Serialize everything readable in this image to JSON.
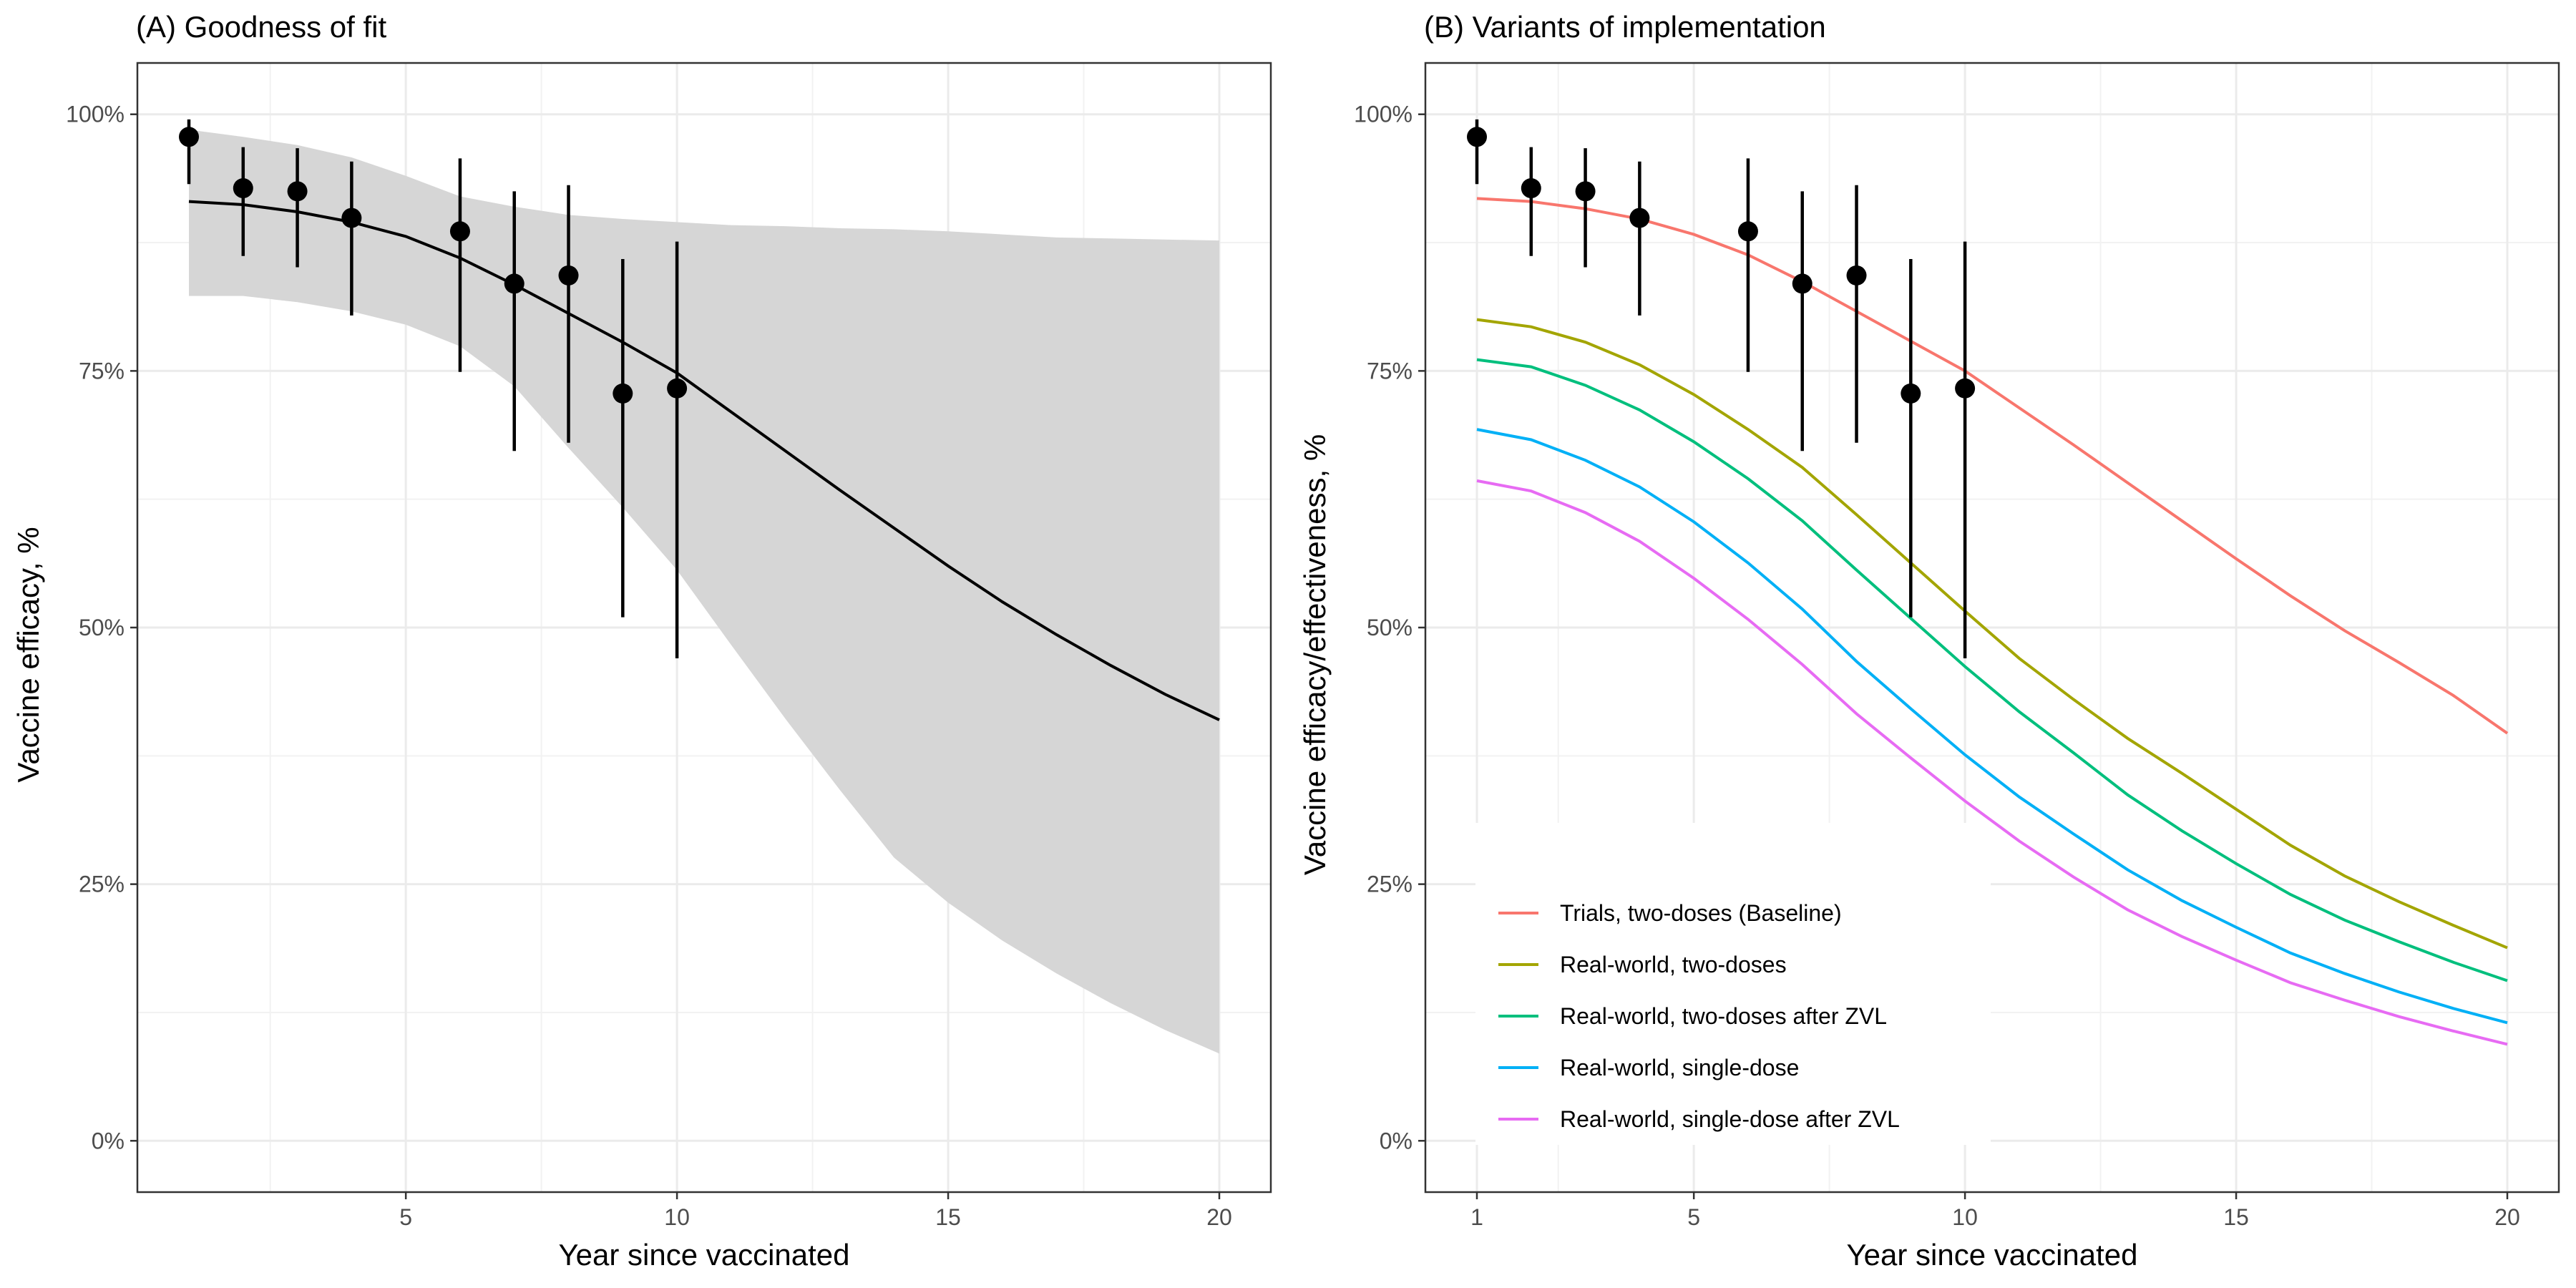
{
  "chart_data": [
    {
      "panel": "A",
      "type": "line",
      "title": "(A) Goodness of fit",
      "xlabel": "Year since vaccinated",
      "ylabel": "Vaccine efficacy, %",
      "xlim": [
        0.05,
        20.95
      ],
      "ylim": [
        -0.05,
        1.05
      ],
      "x_ticks": [
        5,
        10,
        15,
        20
      ],
      "x_tick_labels": [
        "5",
        "10",
        "15",
        "20"
      ],
      "y_ticks": [
        0,
        0.25,
        0.5,
        0.75,
        1.0
      ],
      "y_tick_labels": [
        "0%",
        "25%",
        "50%",
        "75%",
        "100%"
      ],
      "grid": true,
      "fit_line": {
        "x": [
          1,
          2,
          3,
          4,
          5,
          6,
          7,
          8,
          9,
          10,
          11,
          12,
          13,
          14,
          15,
          16,
          17,
          18,
          19,
          20
        ],
        "y": [
          0.915,
          0.912,
          0.905,
          0.895,
          0.881,
          0.86,
          0.834,
          0.806,
          0.778,
          0.748,
          0.71,
          0.672,
          0.634,
          0.597,
          0.56,
          0.525,
          0.493,
          0.463,
          0.435,
          0.41
        ]
      },
      "ribbon": {
        "x": [
          1,
          2,
          3,
          4,
          5,
          6,
          7,
          8,
          9,
          10,
          11,
          12,
          13,
          14,
          15,
          16,
          17,
          18,
          19,
          20
        ],
        "lower": [
          0.823,
          0.823,
          0.817,
          0.808,
          0.795,
          0.774,
          0.735,
          0.675,
          0.617,
          0.556,
          0.483,
          0.411,
          0.342,
          0.276,
          0.232,
          0.195,
          0.163,
          0.134,
          0.108,
          0.085
        ],
        "upper": [
          0.985,
          0.978,
          0.97,
          0.958,
          0.94,
          0.92,
          0.91,
          0.902,
          0.898,
          0.895,
          0.892,
          0.891,
          0.889,
          0.888,
          0.886,
          0.883,
          0.88,
          0.879,
          0.878,
          0.877
        ]
      },
      "observed": [
        {
          "x": 1,
          "y": 0.978,
          "lo": 0.932,
          "hi": 0.995
        },
        {
          "x": 2,
          "y": 0.928,
          "lo": 0.862,
          "hi": 0.968
        },
        {
          "x": 3,
          "y": 0.925,
          "lo": 0.851,
          "hi": 0.967
        },
        {
          "x": 4,
          "y": 0.899,
          "lo": 0.804,
          "hi": 0.954
        },
        {
          "x": 6,
          "y": 0.886,
          "lo": 0.749,
          "hi": 0.957
        },
        {
          "x": 7,
          "y": 0.835,
          "lo": 0.672,
          "hi": 0.925
        },
        {
          "x": 8,
          "y": 0.843,
          "lo": 0.68,
          "hi": 0.931
        },
        {
          "x": 9,
          "y": 0.728,
          "lo": 0.51,
          "hi": 0.859
        },
        {
          "x": 10,
          "y": 0.733,
          "lo": 0.47,
          "hi": 0.876
        }
      ]
    },
    {
      "panel": "B",
      "type": "line",
      "title": "(B) Variants of implementation",
      "xlabel": "Year since vaccinated",
      "ylabel": "Vaccine efficacy/effectiveness, %",
      "xlim": [
        0.05,
        20.95
      ],
      "ylim": [
        -0.05,
        1.05
      ],
      "x_ticks": [
        1,
        5,
        10,
        15,
        20
      ],
      "x_tick_labels": [
        "1",
        "5",
        "10",
        "15",
        "20"
      ],
      "y_ticks": [
        0,
        0.25,
        0.5,
        0.75,
        1.0
      ],
      "y_tick_labels": [
        "0%",
        "25%",
        "50%",
        "75%",
        "100%"
      ],
      "grid": true,
      "legend_position": "bottom-left",
      "x": [
        1,
        2,
        3,
        4,
        5,
        6,
        7,
        8,
        9,
        10,
        11,
        12,
        13,
        14,
        15,
        16,
        17,
        18,
        19,
        20
      ],
      "series": [
        {
          "name": "Trials, two-doses (Baseline)",
          "color": "#F8766D",
          "values": [
            0.918,
            0.915,
            0.908,
            0.898,
            0.883,
            0.863,
            0.837,
            0.808,
            0.779,
            0.75,
            0.714,
            0.678,
            0.641,
            0.604,
            0.567,
            0.531,
            0.497,
            0.466,
            0.434,
            0.397
          ]
        },
        {
          "name": "Real-world, two-doses",
          "color": "#A3A500",
          "values": [
            0.8,
            0.793,
            0.778,
            0.756,
            0.727,
            0.693,
            0.656,
            0.61,
            0.563,
            0.516,
            0.47,
            0.43,
            0.392,
            0.358,
            0.323,
            0.288,
            0.258,
            0.233,
            0.21,
            0.188
          ]
        },
        {
          "name": "Real-world, two-doses after ZVL",
          "color": "#00BF7D",
          "values": [
            0.761,
            0.754,
            0.736,
            0.712,
            0.681,
            0.645,
            0.604,
            0.556,
            0.509,
            0.462,
            0.418,
            0.378,
            0.337,
            0.302,
            0.27,
            0.24,
            0.215,
            0.194,
            0.174,
            0.156
          ]
        },
        {
          "name": "Real-world, single-dose",
          "color": "#00B0F6",
          "values": [
            0.693,
            0.683,
            0.663,
            0.637,
            0.603,
            0.563,
            0.518,
            0.467,
            0.421,
            0.376,
            0.335,
            0.299,
            0.264,
            0.234,
            0.208,
            0.183,
            0.163,
            0.145,
            0.129,
            0.115
          ]
        },
        {
          "name": "Real-world, single-dose after ZVL",
          "color": "#E76BF3",
          "values": [
            0.643,
            0.633,
            0.612,
            0.584,
            0.548,
            0.508,
            0.464,
            0.416,
            0.373,
            0.331,
            0.292,
            0.257,
            0.225,
            0.199,
            0.176,
            0.154,
            0.137,
            0.121,
            0.107,
            0.094
          ]
        }
      ],
      "observed": [
        {
          "x": 1,
          "y": 0.978,
          "lo": 0.932,
          "hi": 0.995
        },
        {
          "x": 2,
          "y": 0.928,
          "lo": 0.862,
          "hi": 0.968
        },
        {
          "x": 3,
          "y": 0.925,
          "lo": 0.851,
          "hi": 0.967
        },
        {
          "x": 4,
          "y": 0.899,
          "lo": 0.804,
          "hi": 0.954
        },
        {
          "x": 6,
          "y": 0.886,
          "lo": 0.749,
          "hi": 0.957
        },
        {
          "x": 7,
          "y": 0.835,
          "lo": 0.672,
          "hi": 0.925
        },
        {
          "x": 8,
          "y": 0.843,
          "lo": 0.68,
          "hi": 0.931
        },
        {
          "x": 9,
          "y": 0.728,
          "lo": 0.51,
          "hi": 0.859
        },
        {
          "x": 10,
          "y": 0.733,
          "lo": 0.47,
          "hi": 0.876
        }
      ]
    }
  ]
}
